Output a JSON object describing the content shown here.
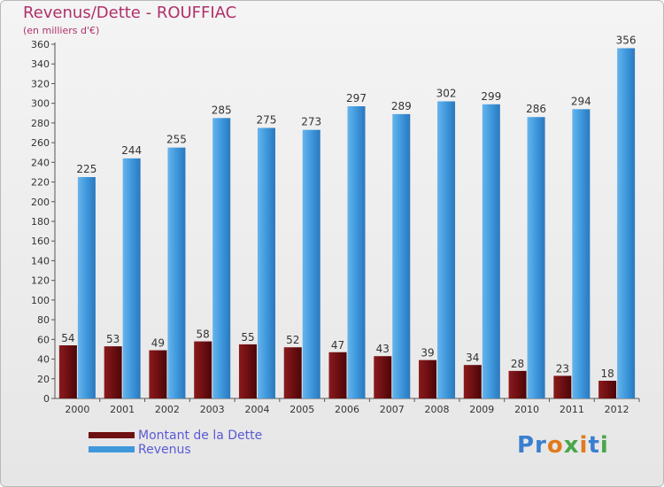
{
  "header": {
    "title": "Revenus/Dette - ROUFFIAC",
    "subtitle": "(en milliers d'€)"
  },
  "logo": {
    "text": "Proxiti"
  },
  "colors": {
    "dette": "#6e0f12",
    "revenus": "#3f98dc",
    "axis_text": "#333333",
    "title": "#b0306a",
    "legend_text": "#5a5ad6"
  },
  "chart_data": {
    "type": "bar",
    "title": "Revenus/Dette - ROUFFIAC",
    "subtitle": "(en milliers d'€)",
    "xlabel": "",
    "ylabel": "",
    "ylim": [
      0,
      360
    ],
    "ytick_step": 20,
    "grid": false,
    "legend_position": "bottom-left",
    "categories": [
      "2000",
      "2001",
      "2002",
      "2003",
      "2004",
      "2005",
      "2006",
      "2007",
      "2008",
      "2009",
      "2010",
      "2011",
      "2012"
    ],
    "series": [
      {
        "name": "Montant de la Dette",
        "color": "#6e0f12",
        "values": [
          54,
          53,
          49,
          58,
          55,
          52,
          47,
          43,
          39,
          34,
          28,
          23,
          18
        ]
      },
      {
        "name": "Revenus",
        "color": "#3f98dc",
        "values": [
          225,
          244,
          255,
          285,
          275,
          273,
          297,
          289,
          302,
          299,
          286,
          294,
          356
        ]
      }
    ]
  }
}
